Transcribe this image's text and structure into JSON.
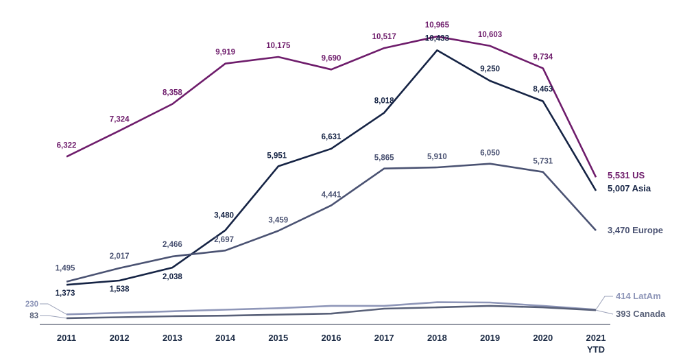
{
  "chart_data": {
    "type": "line",
    "categories": [
      "2011",
      "2012",
      "2013",
      "2014",
      "2015",
      "2016",
      "2017",
      "2018",
      "2019",
      "2020",
      "2021 YTD"
    ],
    "x_tick_labels": [
      {
        "line1": "2011",
        "line2": ""
      },
      {
        "line1": "2012",
        "line2": ""
      },
      {
        "line1": "2013",
        "line2": ""
      },
      {
        "line1": "2014",
        "line2": ""
      },
      {
        "line1": "2015",
        "line2": ""
      },
      {
        "line1": "2016",
        "line2": ""
      },
      {
        "line1": "2017",
        "line2": ""
      },
      {
        "line1": "2018",
        "line2": ""
      },
      {
        "line1": "2019",
        "line2": ""
      },
      {
        "line1": "2020",
        "line2": ""
      },
      {
        "line1": "2021",
        "line2": "YTD"
      }
    ],
    "ylim": [
      0,
      11500
    ],
    "grid": false,
    "legend": "end-of-line labels",
    "series": [
      {
        "name": "US",
        "color": "#6e1c6b",
        "values": [
          6322,
          7324,
          8358,
          9919,
          10175,
          9690,
          10517,
          10965,
          10603,
          9734,
          5531
        ],
        "value_labels": [
          "6,322",
          "7,324",
          "8,358",
          "9,919",
          "10,175",
          "9,690",
          "10,517",
          "10,965",
          "10,603",
          "9,734",
          ""
        ],
        "end_label": "5,531 US"
      },
      {
        "name": "Asia",
        "color": "#152344",
        "values": [
          1373,
          1538,
          2038,
          3480,
          5951,
          6631,
          8018,
          10433,
          9250,
          8463,
          5007
        ],
        "value_labels": [
          "1,373",
          "1,538",
          "2,038",
          "3,480",
          "5,951",
          "6,631",
          "8,018",
          "10,433",
          "9,250",
          "8,463",
          ""
        ],
        "end_label": "5,007 Asia"
      },
      {
        "name": "Europe",
        "color": "#4a5272",
        "values": [
          1495,
          2017,
          2466,
          2697,
          3459,
          4441,
          5865,
          5910,
          6050,
          5731,
          3470
        ],
        "value_labels": [
          "1,495",
          "2,017",
          "2,466",
          "2,697",
          "3,459",
          "4,441",
          "5,865",
          "5,910",
          "6,050",
          "5,731",
          ""
        ],
        "end_label": "3,470 Europe"
      },
      {
        "name": "LatAm",
        "color": "#8e96b8",
        "values": [
          230,
          290,
          350,
          410,
          470,
          560,
          560,
          700,
          690,
          560,
          414
        ],
        "value_labels": [
          "230",
          "",
          "",
          "",
          "",
          "",
          "",
          "",
          "",
          "",
          ""
        ],
        "end_label": "414 LatAm"
      },
      {
        "name": "Canada",
        "color": "#586078",
        "values": [
          83,
          120,
          160,
          180,
          220,
          260,
          450,
          500,
          560,
          500,
          393
        ],
        "value_labels": [
          "83",
          "",
          "",
          "",
          "",
          "",
          "",
          "",
          "",
          "",
          ""
        ],
        "end_label": "393 Canada"
      }
    ]
  }
}
